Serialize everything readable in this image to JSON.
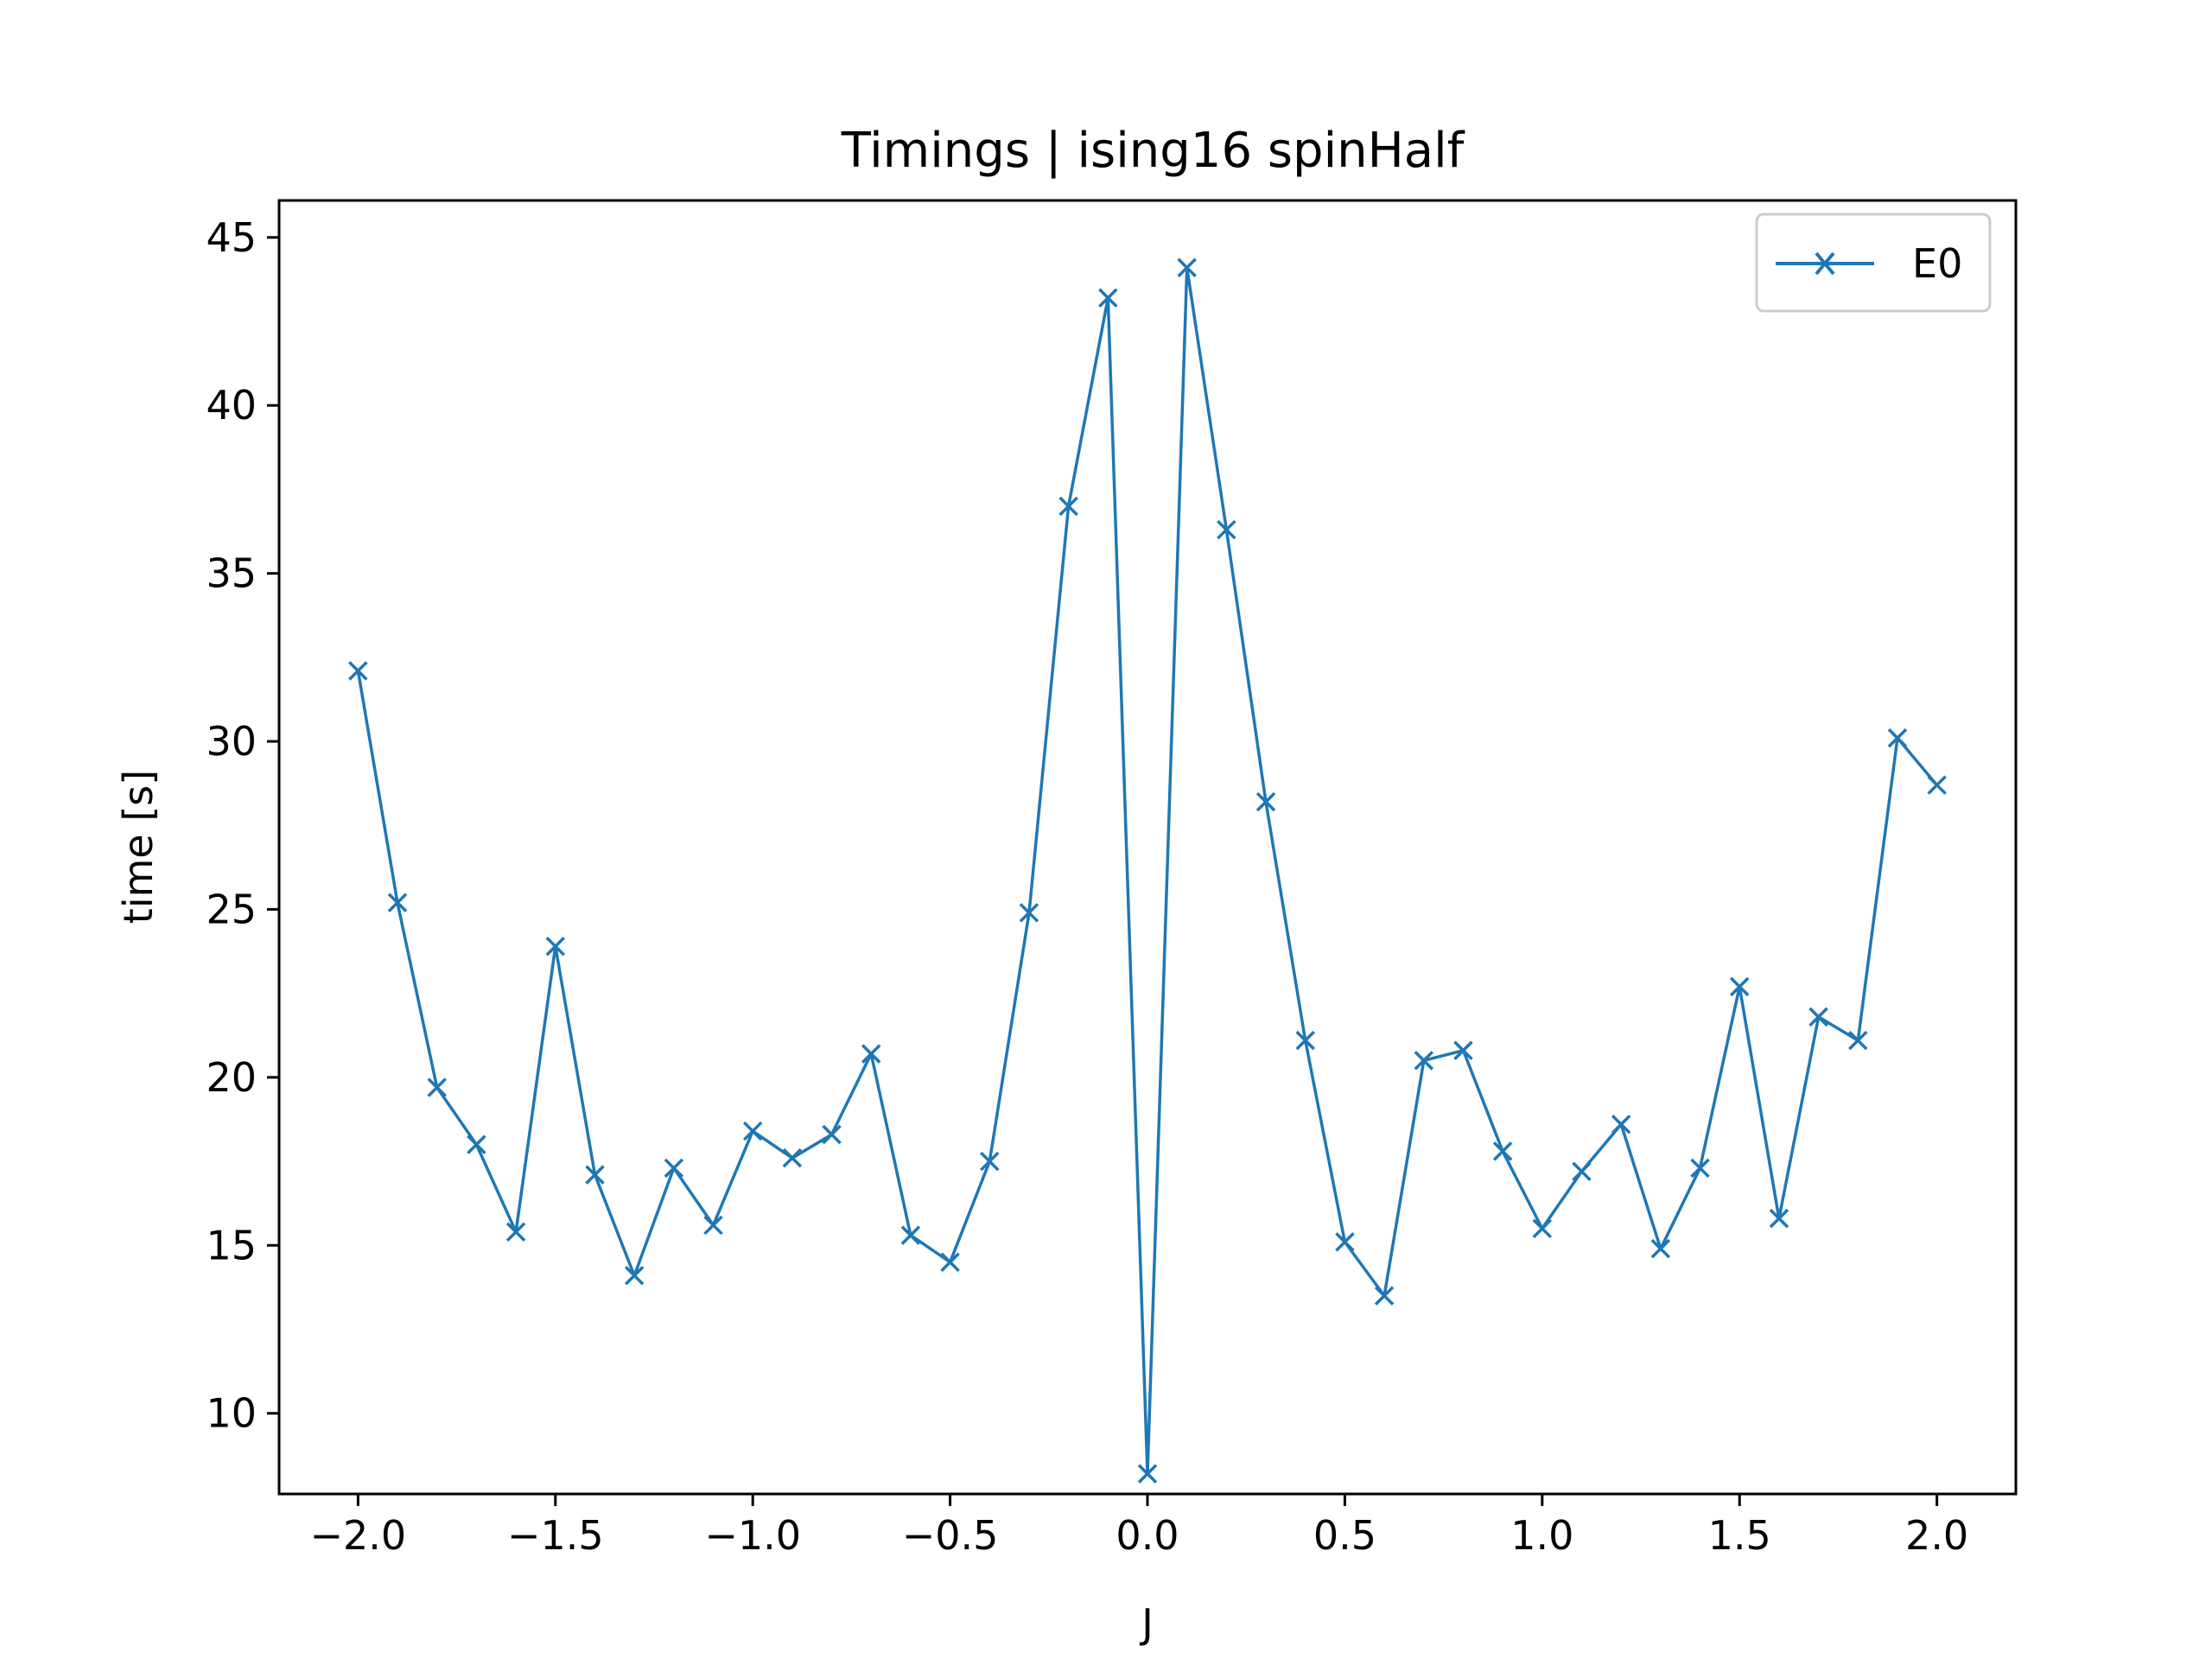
{
  "chart_data": {
    "type": "line",
    "title": "Timings | ising16 spinHalf",
    "xlabel": "J",
    "ylabel": "time [s]",
    "xlim": [
      -2.2,
      2.2
    ],
    "ylim": [
      7.6,
      46.1
    ],
    "xticks": [
      -2.0,
      -1.5,
      -1.0,
      -0.5,
      0.0,
      0.5,
      1.0,
      1.5,
      2.0
    ],
    "xtick_labels": [
      "−2.0",
      "−1.5",
      "−1.0",
      "−0.5",
      "0.0",
      "0.5",
      "1.0",
      "1.5",
      "2.0"
    ],
    "yticks": [
      10,
      15,
      20,
      25,
      30,
      35,
      40,
      45
    ],
    "ytick_labels": [
      "10",
      "15",
      "20",
      "25",
      "30",
      "35",
      "40",
      "45"
    ],
    "grid": false,
    "legend_position": "top-right",
    "series": [
      {
        "name": "E0",
        "color": "#1f77b4",
        "marker": "x",
        "x": [
          -2.0,
          -1.9,
          -1.8,
          -1.7,
          -1.6,
          -1.5,
          -1.4,
          -1.3,
          -1.2,
          -1.1,
          -1.0,
          -0.9,
          -0.8,
          -0.7,
          -0.6,
          -0.5,
          -0.4,
          -0.3,
          -0.2,
          -0.1,
          0.0,
          0.1,
          0.2,
          0.3,
          0.4,
          0.5,
          0.6,
          0.7,
          0.8,
          0.9,
          1.0,
          1.1,
          1.2,
          1.3,
          1.4,
          1.5,
          1.6,
          1.7,
          1.8,
          1.9,
          2.0
        ],
        "y": [
          32.1,
          25.2,
          19.7,
          18.0,
          15.4,
          23.9,
          17.1,
          14.1,
          17.3,
          15.6,
          18.4,
          17.6,
          18.3,
          20.7,
          15.3,
          14.5,
          17.5,
          24.9,
          37.0,
          43.2,
          8.2,
          44.1,
          36.3,
          28.2,
          21.1,
          15.1,
          13.5,
          20.5,
          20.8,
          17.8,
          15.5,
          17.2,
          18.6,
          14.9,
          17.3,
          22.7,
          15.8,
          21.8,
          21.1,
          30.1,
          28.7
        ]
      }
    ]
  }
}
